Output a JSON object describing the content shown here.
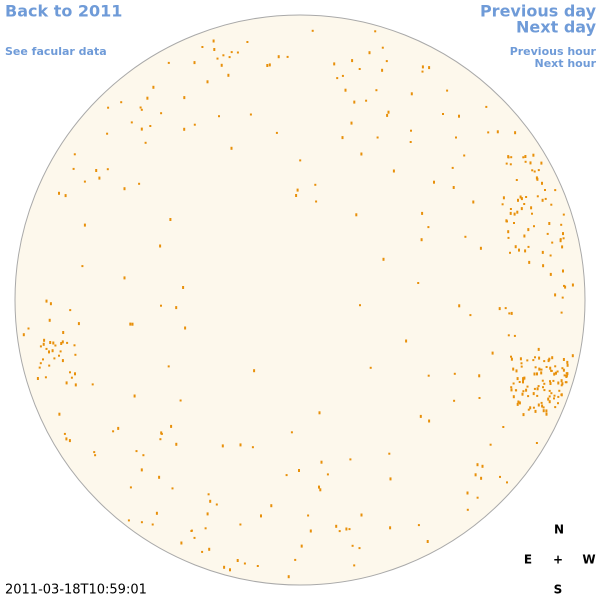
{
  "links": {
    "back": "Back to 2011",
    "facular": "See facular data",
    "previous_day": "Previous day",
    "next_day": "Next day",
    "previous_hour": "Previous hour",
    "next_hour": "Next hour"
  },
  "timestamp": "2011-03-18T10:59:01",
  "compass": {
    "north": "N",
    "east": "E",
    "center": "+",
    "west": "W",
    "south": "S"
  }
}
